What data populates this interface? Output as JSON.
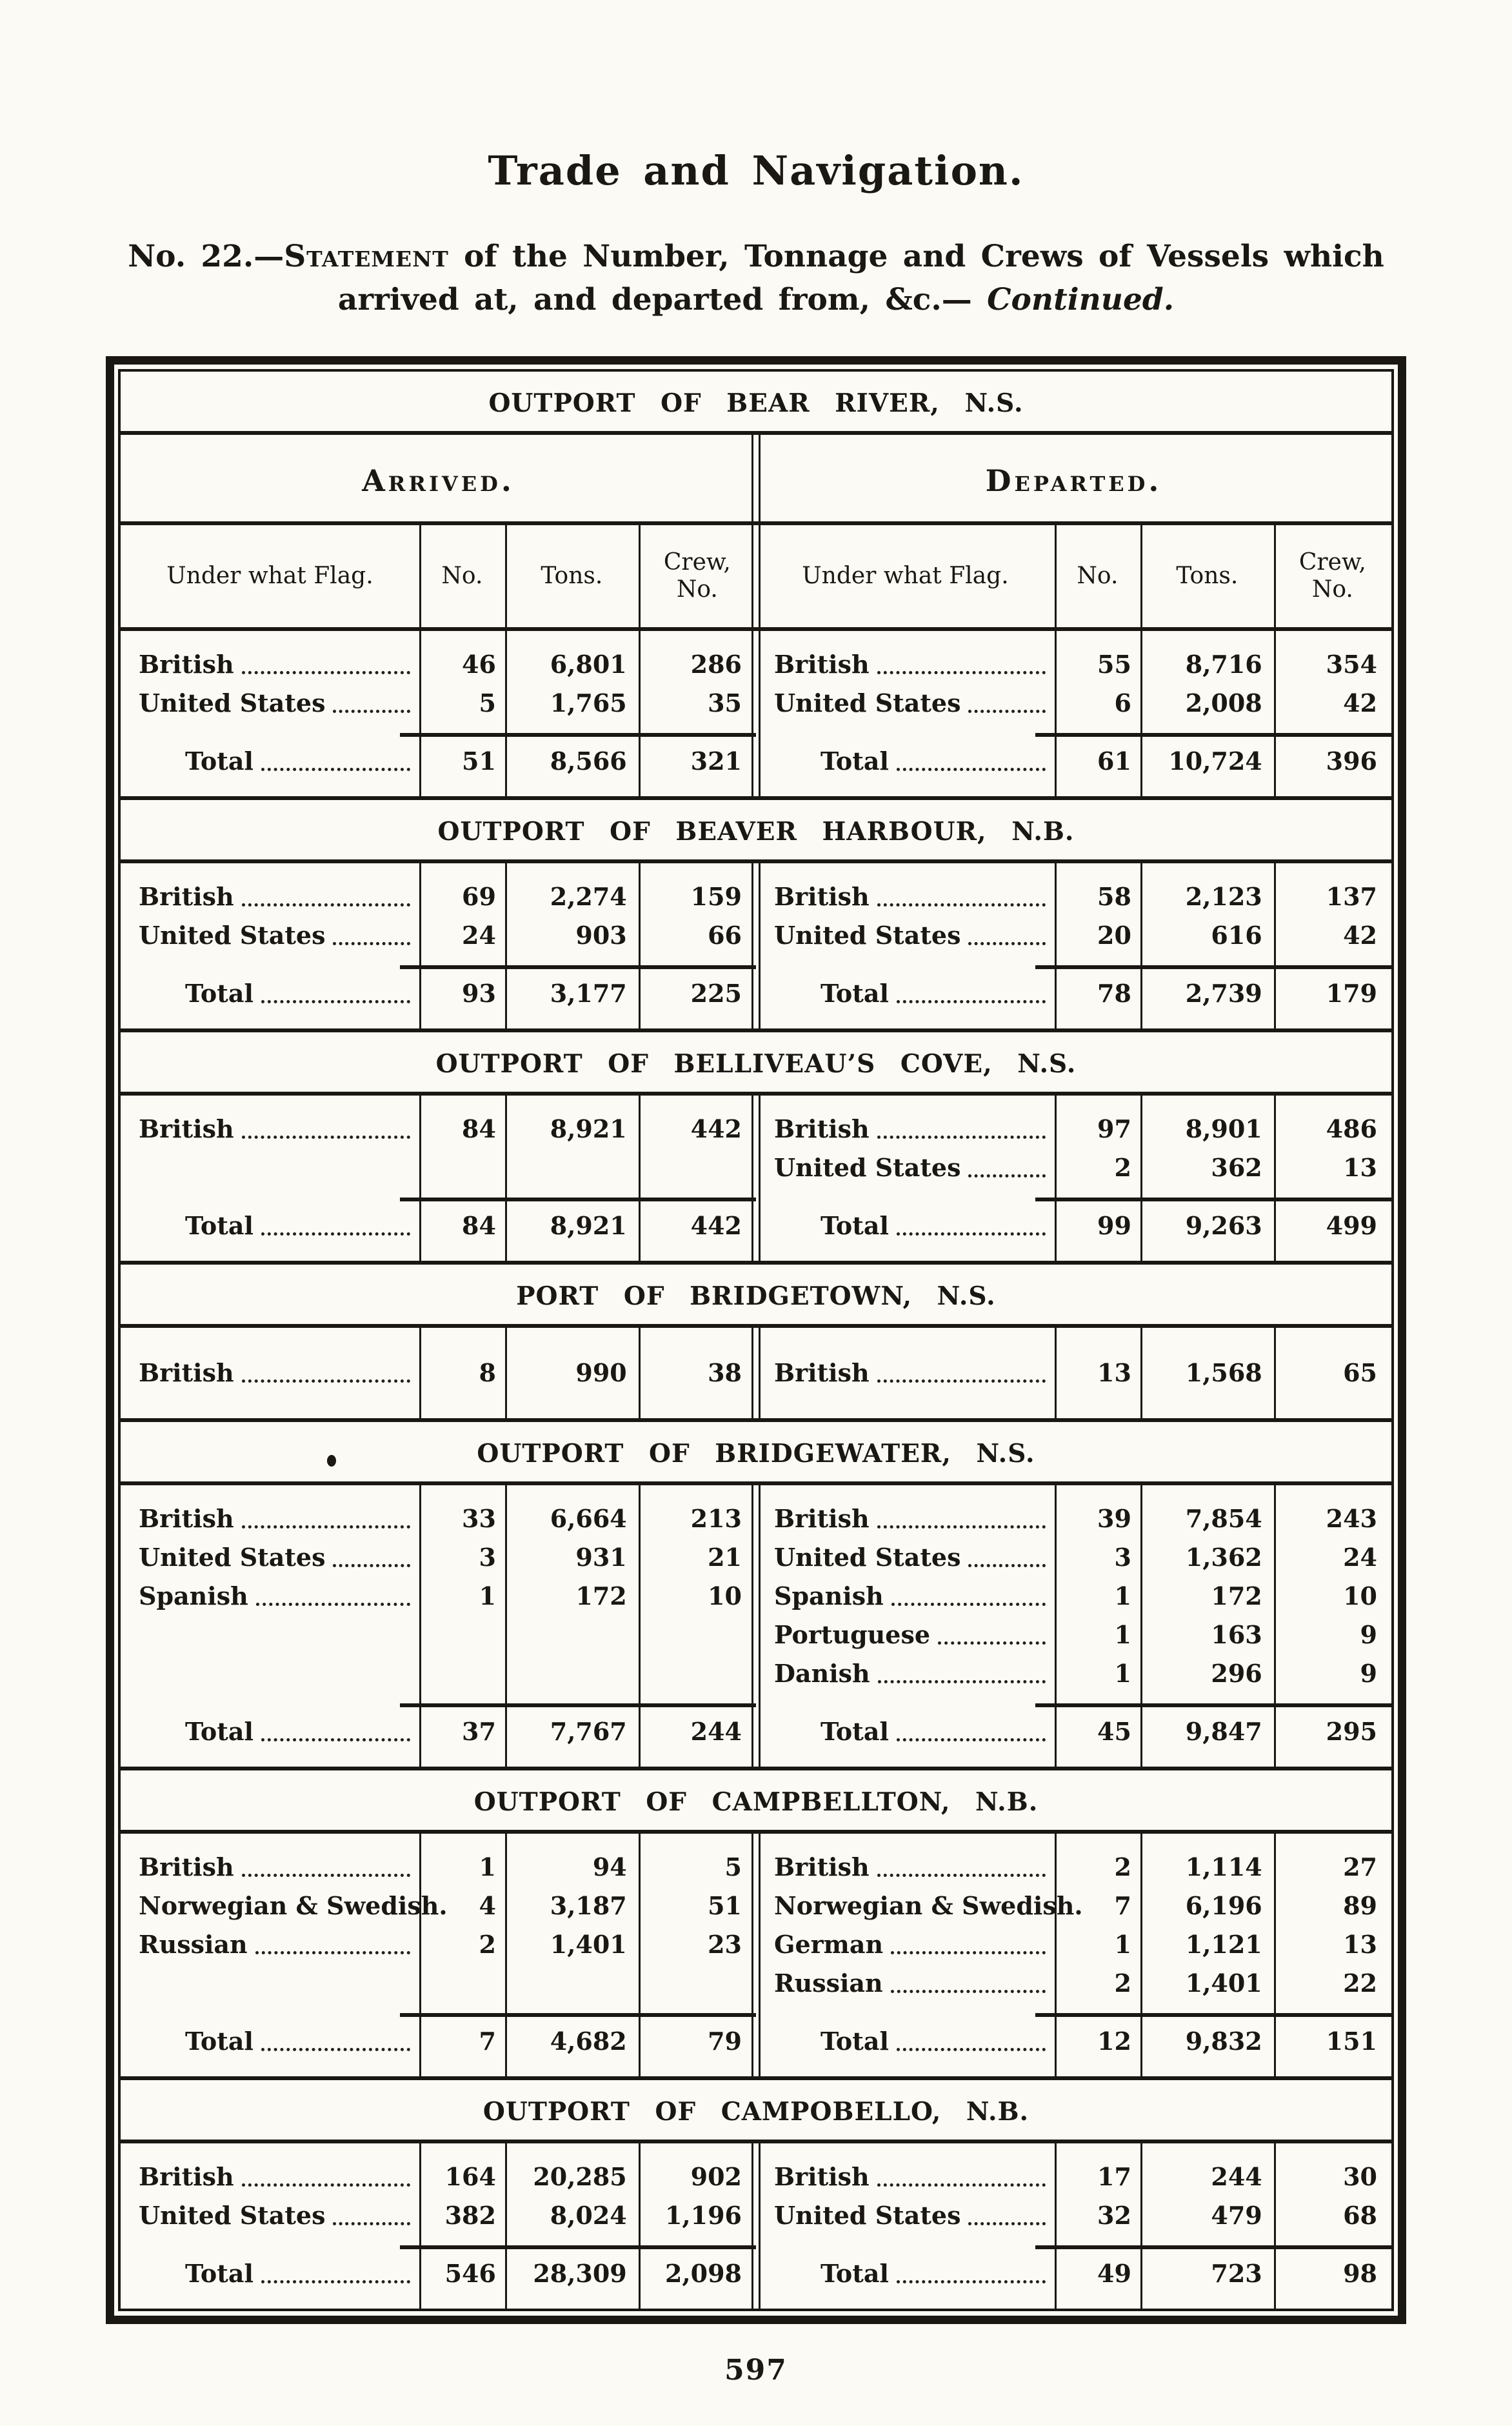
{
  "header": {
    "title": "Trade and Navigation.",
    "statement_no": "No. 22.—",
    "statement_word": "Statement",
    "statement_rest": " of the Number, Tonnage and Crews of Vessels which",
    "statement_line2": "arrived at, and departed from, &c.— ",
    "continued": "Continued."
  },
  "table": {
    "arrived_label": "Arrived.",
    "departed_label": "Departed.",
    "columns": [
      "Under what Flag.",
      "No.",
      "Tons.",
      "Crew, No."
    ],
    "sections": [
      {
        "title": "OUTPORT OF BEAR RIVER, N.S.",
        "arrived": {
          "rows": [
            [
              "British",
              "46",
              "6,801",
              "286"
            ],
            [
              "United States",
              "5",
              "1,765",
              "35"
            ]
          ],
          "total": [
            "Total",
            "51",
            "8,566",
            "321"
          ]
        },
        "departed": {
          "rows": [
            [
              "British",
              "55",
              "8,716",
              "354"
            ],
            [
              "United States",
              "6",
              "2,008",
              "42"
            ]
          ],
          "total": [
            "Total",
            "61",
            "10,724",
            "396"
          ]
        }
      },
      {
        "title": "OUTPORT OF BEAVER HARBOUR, N.B.",
        "arrived": {
          "rows": [
            [
              "British",
              "69",
              "2,274",
              "159"
            ],
            [
              "United States",
              "24",
              "903",
              "66"
            ]
          ],
          "total": [
            "Total",
            "93",
            "3,177",
            "225"
          ]
        },
        "departed": {
          "rows": [
            [
              "British",
              "58",
              "2,123",
              "137"
            ],
            [
              "United States",
              "20",
              "616",
              "42"
            ]
          ],
          "total": [
            "Total",
            "78",
            "2,739",
            "179"
          ]
        }
      },
      {
        "title": "OUTPORT OF BELLIVEAU’S COVE, N.S.",
        "arrived": {
          "rows": [
            [
              "British",
              "84",
              "8,921",
              "442"
            ]
          ],
          "total": [
            "Total",
            "84",
            "8,921",
            "442"
          ]
        },
        "departed": {
          "rows": [
            [
              "British",
              "97",
              "8,901",
              "486"
            ],
            [
              "United States",
              "2",
              "362",
              "13"
            ]
          ],
          "total": [
            "Total",
            "99",
            "9,263",
            "499"
          ]
        }
      },
      {
        "title": "PORT OF BRIDGETOWN, N.S.",
        "arrived": {
          "rows": [
            [
              "British",
              "8",
              "990",
              "38"
            ]
          ],
          "total": null
        },
        "departed": {
          "rows": [
            [
              "British",
              "13",
              "1,568",
              "65"
            ]
          ],
          "total": null
        }
      },
      {
        "title": "OUTPORT OF BRIDGEWATER, N.S.",
        "arrived": {
          "rows": [
            [
              "British",
              "33",
              "6,664",
              "213"
            ],
            [
              "United States",
              "3",
              "931",
              "21"
            ],
            [
              "Spanish",
              "1",
              "172",
              "10"
            ]
          ],
          "total": [
            "Total",
            "37",
            "7,767",
            "244"
          ]
        },
        "departed": {
          "rows": [
            [
              "British",
              "39",
              "7,854",
              "243"
            ],
            [
              "United States",
              "3",
              "1,362",
              "24"
            ],
            [
              "Spanish",
              "1",
              "172",
              "10"
            ],
            [
              "Portuguese",
              "1",
              "163",
              "9"
            ],
            [
              "Danish",
              "1",
              "296",
              "9"
            ]
          ],
          "total": [
            "Total",
            "45",
            "9,847",
            "295"
          ]
        }
      },
      {
        "title": "OUTPORT OF CAMPBELLTON, N.B.",
        "arrived": {
          "rows": [
            [
              "British",
              "1",
              "94",
              "5"
            ],
            [
              "Norwegian & Swedish.",
              "4",
              "3,187",
              "51"
            ],
            [
              "Russian",
              "2",
              "1,401",
              "23"
            ]
          ],
          "total": [
            "Total",
            "7",
            "4,682",
            "79"
          ]
        },
        "departed": {
          "rows": [
            [
              "British",
              "2",
              "1,114",
              "27"
            ],
            [
              "Norwegian & Swedish.",
              "7",
              "6,196",
              "89"
            ],
            [
              "German",
              "1",
              "1,121",
              "13"
            ],
            [
              "Russian",
              "2",
              "1,401",
              "22"
            ]
          ],
          "total": [
            "Total",
            "12",
            "9,832",
            "151"
          ]
        }
      },
      {
        "title": "OUTPORT OF CAMPOBELLO, N.B.",
        "arrived": {
          "rows": [
            [
              "British",
              "164",
              "20,285",
              "902"
            ],
            [
              "United States",
              "382",
              "8,024",
              "1,196"
            ]
          ],
          "total": [
            "Total",
            "546",
            "28,309",
            "2,098"
          ]
        },
        "departed": {
          "rows": [
            [
              "British",
              "17",
              "244",
              "30"
            ],
            [
              "United States",
              "32",
              "479",
              "68"
            ]
          ],
          "total": [
            "Total",
            "49",
            "723",
            "98"
          ]
        }
      }
    ]
  },
  "footer": {
    "page_number": "597"
  }
}
